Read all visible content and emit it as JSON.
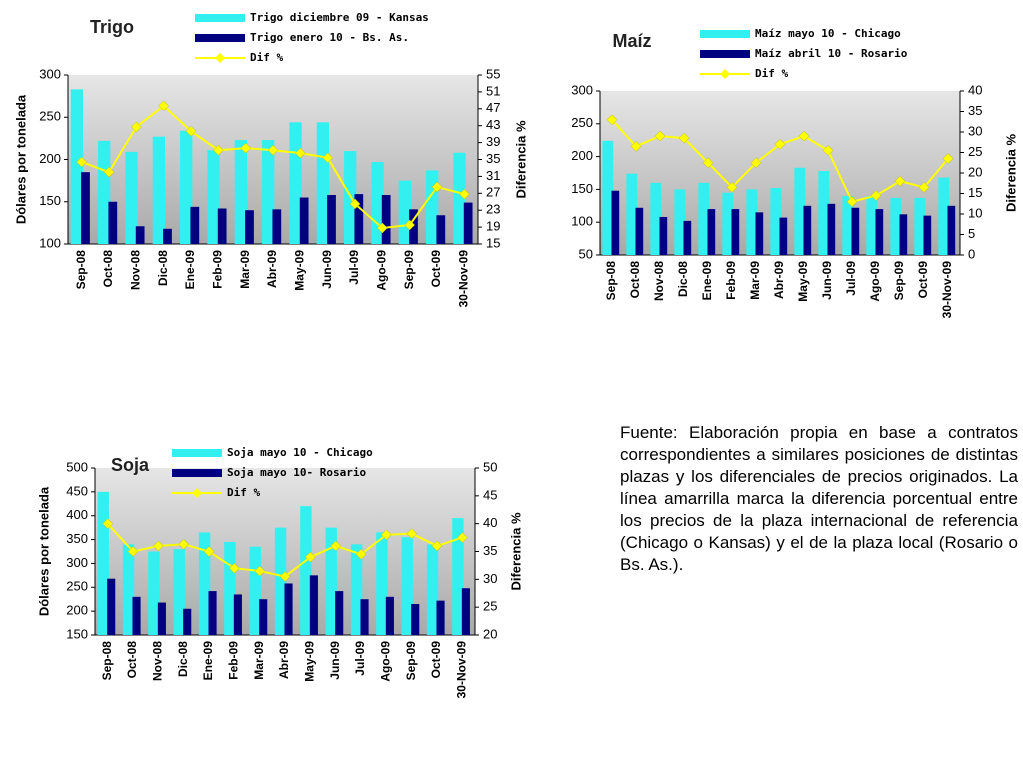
{
  "chart_data": [
    {
      "type": "combo",
      "title": "Trigo",
      "ylabel": "Dólares por tonelada",
      "y2label": "Diferencia %",
      "categories": [
        "Sep-08",
        "Oct-08",
        "Nov-08",
        "Dic-08",
        "Ene-09",
        "Feb-09",
        "Mar-09",
        "Abr-09",
        "May-09",
        "Jun-09",
        "Jul-09",
        "Ago-09",
        "Sep-09",
        "Oct-09",
        "30-Nov-09"
      ],
      "ylim": [
        100,
        300
      ],
      "yticks": [
        100,
        150,
        200,
        250,
        300
      ],
      "y2lim": [
        15,
        55
      ],
      "y2ticks": [
        15,
        19,
        23,
        27,
        31,
        35,
        39,
        43,
        47,
        51,
        55
      ],
      "series": [
        {
          "name": "Trigo diciembre 09 - Kansas",
          "type": "bar",
          "color": "#33f0f0",
          "values": [
            283,
            222,
            209,
            227,
            234,
            211,
            223,
            223,
            244,
            244,
            210,
            197,
            175,
            187,
            208
          ]
        },
        {
          "name": "Trigo enero 10 - Bs. As.",
          "type": "bar",
          "color": "#000080",
          "values": [
            185,
            150,
            121,
            118,
            144,
            142,
            140,
            141,
            155,
            158,
            159,
            158,
            141,
            134,
            149
          ]
        },
        {
          "name": "Dif %",
          "type": "line",
          "axis": "y2",
          "color": "#ffff00",
          "values": [
            34.4,
            32,
            42.7,
            47.7,
            41.7,
            37.2,
            37.7,
            37.2,
            36.5,
            35.4,
            24.5,
            18.8,
            19.5,
            28.5,
            26.8
          ]
        }
      ]
    },
    {
      "type": "combo",
      "title": "Maíz",
      "y2label": "Diferencia %",
      "categories": [
        "Sep-08",
        "Oct-08",
        "Nov-08",
        "Dic-08",
        "Ene-09",
        "Feb-09",
        "Mar-09",
        "Abr-09",
        "May-09",
        "Jun-09",
        "Jul-09",
        "Ago-09",
        "Sep-09",
        "Oct-09",
        "30-Nov-09"
      ],
      "ylim": [
        50,
        300
      ],
      "yticks": [
        50,
        100,
        150,
        200,
        250,
        300
      ],
      "y2lim": [
        0,
        40
      ],
      "y2ticks": [
        0,
        5,
        10,
        15,
        20,
        25,
        30,
        35,
        40
      ],
      "series": [
        {
          "name": "Maíz mayo 10 - Chicago",
          "type": "bar",
          "color": "#33f0f0",
          "values": [
            224,
            174,
            160,
            150,
            160,
            145,
            150,
            152,
            183,
            178,
            140,
            140,
            137,
            137,
            168
          ]
        },
        {
          "name": "Maíz abril 10 - Rosario",
          "type": "bar",
          "color": "#000080",
          "values": [
            148,
            122,
            108,
            102,
            120,
            120,
            115,
            107,
            125,
            128,
            122,
            120,
            112,
            110,
            125
          ]
        },
        {
          "name": "Dif %",
          "type": "line",
          "axis": "y2",
          "color": "#ffff00",
          "values": [
            33,
            26.5,
            29,
            28.5,
            22.5,
            16.5,
            22.5,
            27,
            29,
            25.5,
            13,
            14.5,
            18,
            16.5,
            23.5
          ]
        }
      ]
    },
    {
      "type": "combo",
      "title": "Soja",
      "ylabel": "Dólares por tonelada",
      "y2label": "Diferencia %",
      "categories": [
        "Sep-08",
        "Oct-08",
        "Nov-08",
        "Dic-08",
        "Ene-09",
        "Feb-09",
        "Mar-09",
        "Abr-09",
        "May-09",
        "Jun-09",
        "Jul-09",
        "Ago-09",
        "Sep-09",
        "Oct-09",
        "30-Nov-09"
      ],
      "ylim": [
        150,
        500
      ],
      "yticks": [
        150,
        200,
        250,
        300,
        350,
        400,
        450,
        500
      ],
      "y2lim": [
        20,
        50
      ],
      "y2ticks": [
        20,
        25,
        30,
        35,
        40,
        45,
        50
      ],
      "series": [
        {
          "name": "Soja mayo 10 - Chicago",
          "type": "bar",
          "color": "#33f0f0",
          "values": [
            450,
            340,
            325,
            330,
            365,
            345,
            335,
            375,
            420,
            375,
            340,
            365,
            355,
            340,
            395
          ]
        },
        {
          "name": "Soja mayo 10- Rosario",
          "type": "bar",
          "color": "#000080",
          "values": [
            268,
            230,
            218,
            205,
            242,
            235,
            225,
            258,
            275,
            242,
            225,
            230,
            215,
            222,
            248
          ]
        },
        {
          "name": "Dif %",
          "type": "line",
          "axis": "y2",
          "color": "#ffff00",
          "values": [
            40,
            35,
            36,
            36.3,
            35,
            32,
            31.5,
            30.5,
            34,
            36,
            34.5,
            38,
            38.2,
            36,
            37.5
          ]
        }
      ]
    }
  ],
  "note": "Fuente: Elaboración propia en base a contratos correspondientes a similares posiciones de distintas plazas y los diferenciales de precios originados. La línea amarrilla marca la diferencia porcentual entre los precios de la plaza internacional de referencia (Chicago o Kansas) y el de la plaza local (Rosario o Bs. As.)."
}
